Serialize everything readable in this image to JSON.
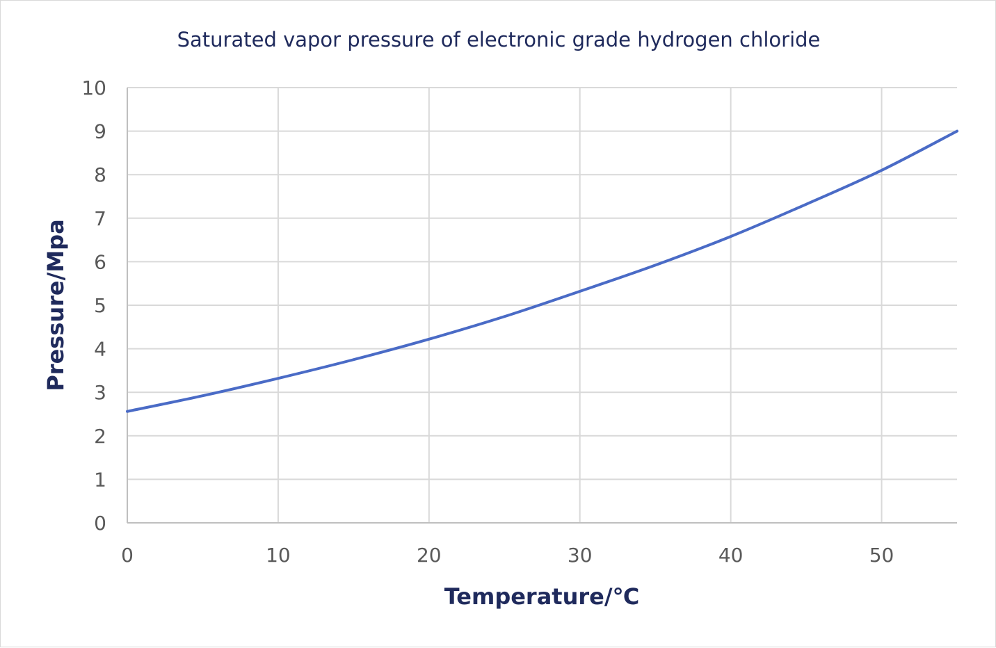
{
  "chart_data": {
    "type": "line",
    "title": "Saturated vapor pressure of electronic grade hydrogen chloride",
    "xlabel": "Temperature/℃",
    "ylabel": "Pressure/Mpa",
    "xlim": [
      0,
      55
    ],
    "ylim": [
      0,
      10
    ],
    "xticks": [
      "0",
      "10",
      "20",
      "30",
      "40",
      "50"
    ],
    "yticks": [
      "0",
      "1",
      "2",
      "3",
      "4",
      "5",
      "6",
      "7",
      "8",
      "9",
      "10"
    ],
    "grid": true,
    "legend": "none",
    "color": "#4a6bc6",
    "series": [
      {
        "x": [
          0,
          5,
          10,
          15,
          20,
          25,
          30,
          35,
          40,
          45,
          50,
          55
        ],
        "y": [
          2.56,
          2.92,
          3.32,
          3.75,
          4.22,
          4.74,
          5.32,
          5.92,
          6.58,
          7.32,
          8.1,
          9.0
        ]
      }
    ]
  }
}
